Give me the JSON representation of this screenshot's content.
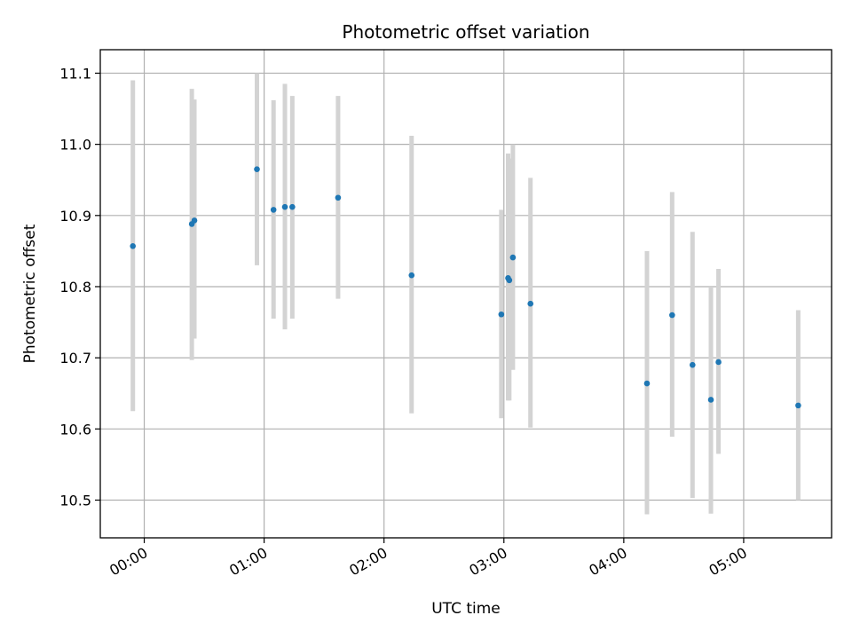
{
  "chart_data": {
    "type": "scatter",
    "title": "Photometric offset variation",
    "xlabel": "UTC time",
    "ylabel": "Photometric offset",
    "x_unit": "minutes after 00:00 UTC",
    "xlim": [
      -22,
      344
    ],
    "ylim": [
      10.447,
      11.133
    ],
    "grid": true,
    "x_ticks": [
      {
        "value": 0,
        "label": "00:00"
      },
      {
        "value": 60,
        "label": "01:00"
      },
      {
        "value": 120,
        "label": "02:00"
      },
      {
        "value": 180,
        "label": "03:00"
      },
      {
        "value": 240,
        "label": "04:00"
      },
      {
        "value": 300,
        "label": "05:00"
      }
    ],
    "y_ticks": [
      {
        "value": 10.5,
        "label": "10.5"
      },
      {
        "value": 10.6,
        "label": "10.6"
      },
      {
        "value": 10.7,
        "label": "10.7"
      },
      {
        "value": 10.8,
        "label": "10.8"
      },
      {
        "value": 10.9,
        "label": "10.9"
      },
      {
        "value": 11.0,
        "label": "11.0"
      },
      {
        "value": 11.1,
        "label": "11.1"
      }
    ],
    "point_color": "#1f77b4",
    "errorbar_color": "#d3d3d3",
    "points": [
      {
        "x": -5.7,
        "y": 10.857,
        "ylow": 10.625,
        "yhigh": 11.09
      },
      {
        "x": 23.8,
        "y": 10.888,
        "ylow": 10.697,
        "yhigh": 11.078
      },
      {
        "x": 25.1,
        "y": 10.893,
        "ylow": 10.727,
        "yhigh": 11.063
      },
      {
        "x": 56.4,
        "y": 10.965,
        "ylow": 10.83,
        "yhigh": 11.1
      },
      {
        "x": 64.7,
        "y": 10.908,
        "ylow": 10.755,
        "yhigh": 11.062
      },
      {
        "x": 70.4,
        "y": 10.912,
        "ylow": 10.74,
        "yhigh": 11.085
      },
      {
        "x": 74.1,
        "y": 10.912,
        "ylow": 10.755,
        "yhigh": 11.068
      },
      {
        "x": 97.0,
        "y": 10.925,
        "ylow": 10.783,
        "yhigh": 11.068
      },
      {
        "x": 133.8,
        "y": 10.816,
        "ylow": 10.622,
        "yhigh": 11.012
      },
      {
        "x": 178.7,
        "y": 10.761,
        "ylow": 10.615,
        "yhigh": 10.908
      },
      {
        "x": 182.1,
        "y": 10.812,
        "ylow": 10.64,
        "yhigh": 10.987
      },
      {
        "x": 182.7,
        "y": 10.809,
        "ylow": 10.64,
        "yhigh": 10.98
      },
      {
        "x": 184.5,
        "y": 10.841,
        "ylow": 10.683,
        "yhigh": 11.0
      },
      {
        "x": 193.3,
        "y": 10.776,
        "ylow": 10.602,
        "yhigh": 10.953
      },
      {
        "x": 251.6,
        "y": 10.664,
        "ylow": 10.48,
        "yhigh": 10.85
      },
      {
        "x": 264.2,
        "y": 10.76,
        "ylow": 10.589,
        "yhigh": 10.933
      },
      {
        "x": 274.4,
        "y": 10.69,
        "ylow": 10.503,
        "yhigh": 10.877
      },
      {
        "x": 283.6,
        "y": 10.641,
        "ylow": 10.481,
        "yhigh": 10.8
      },
      {
        "x": 287.4,
        "y": 10.694,
        "ylow": 10.565,
        "yhigh": 10.825
      },
      {
        "x": 327.3,
        "y": 10.633,
        "ylow": 10.5,
        "yhigh": 10.767
      }
    ]
  }
}
